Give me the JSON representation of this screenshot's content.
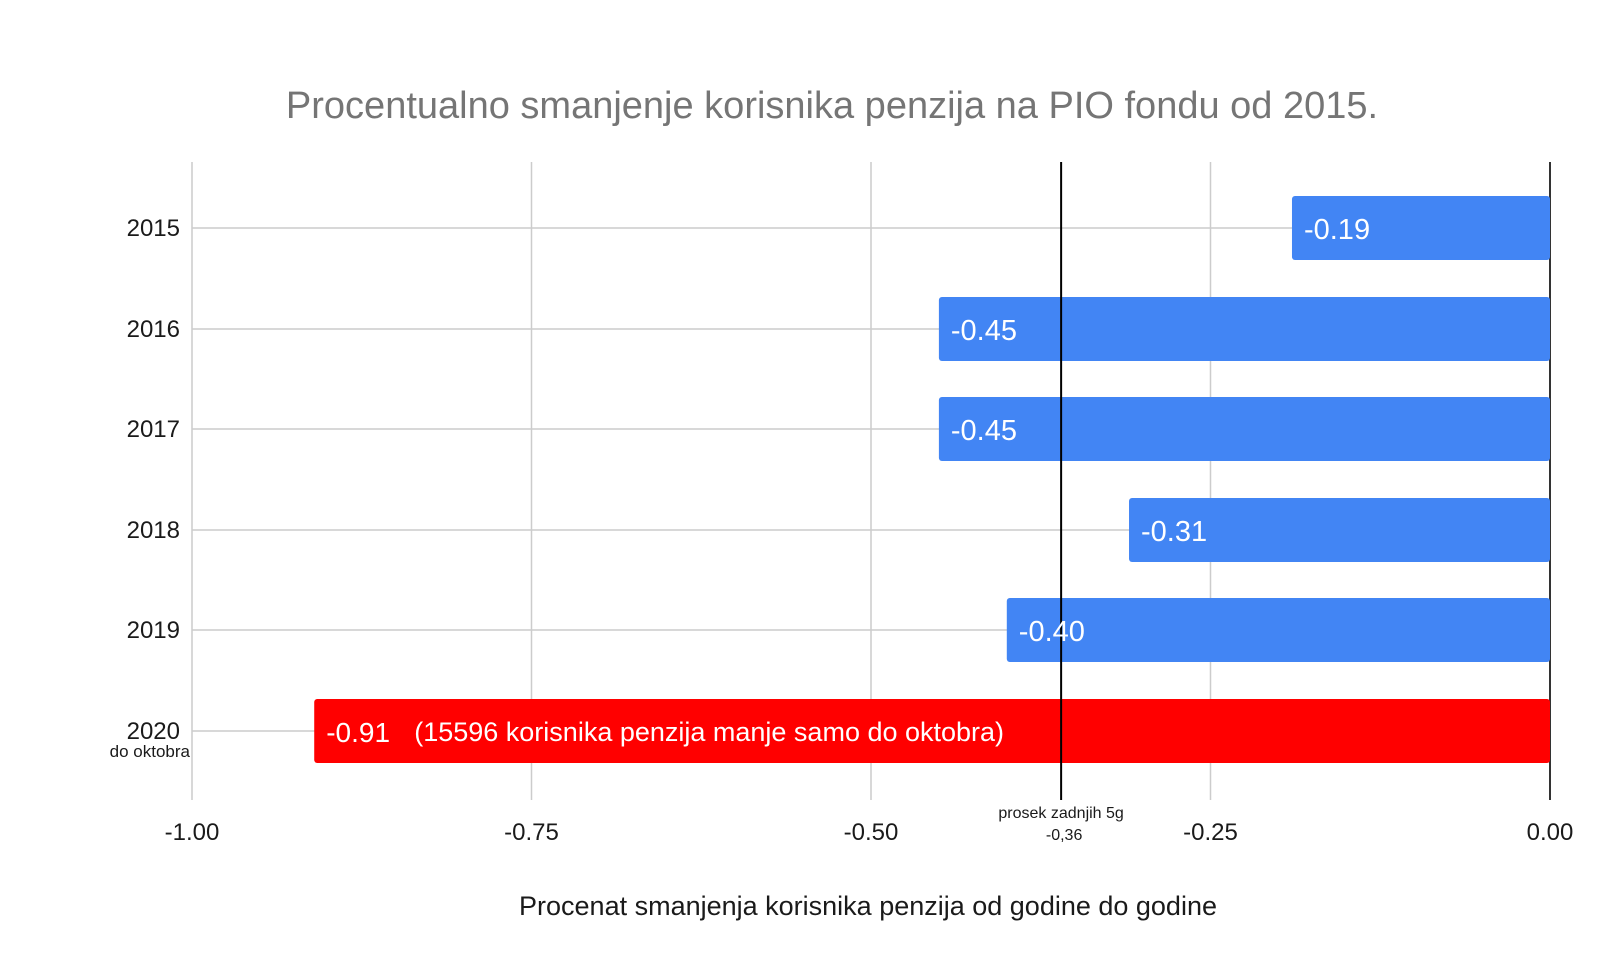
{
  "chart_data": {
    "type": "bar",
    "orientation": "horizontal",
    "title": "Procentualno smanjenje korisnika penzija na PIO fondu od 2015.",
    "xlabel": "Procenat smanjenja korisnika penzija od godine do godine",
    "ylabel": "",
    "xlim": [
      -1.0,
      0.0
    ],
    "x_ticks": [
      "-1.00",
      "-0.75",
      "-0.50",
      "-0.25",
      "0.00"
    ],
    "x_tick_values": [
      -1.0,
      -0.75,
      -0.5,
      -0.25,
      0.0
    ],
    "grid": true,
    "categories": [
      "2015",
      "2016",
      "2017",
      "2018",
      "2019",
      "2020"
    ],
    "category_sublabels": [
      "",
      "",
      "",
      "",
      "",
      "do oktobra"
    ],
    "values": [
      -0.19,
      -0.45,
      -0.45,
      -0.31,
      -0.4,
      -0.91
    ],
    "data_labels": [
      "-0.19",
      "-0.45",
      "-0.45",
      "-0.31",
      "-0.40",
      "-0.91"
    ],
    "extra_label_2020": "(15596 korisnika penzija manje samo do oktobra)",
    "bar_colors": [
      "#4285f4",
      "#4285f4",
      "#4285f4",
      "#4285f4",
      "#4285f4",
      "#ff0000"
    ],
    "reference_line": {
      "value": -0.36,
      "label": "prosek zadnjih 5g",
      "value_label": "-0,36"
    }
  }
}
